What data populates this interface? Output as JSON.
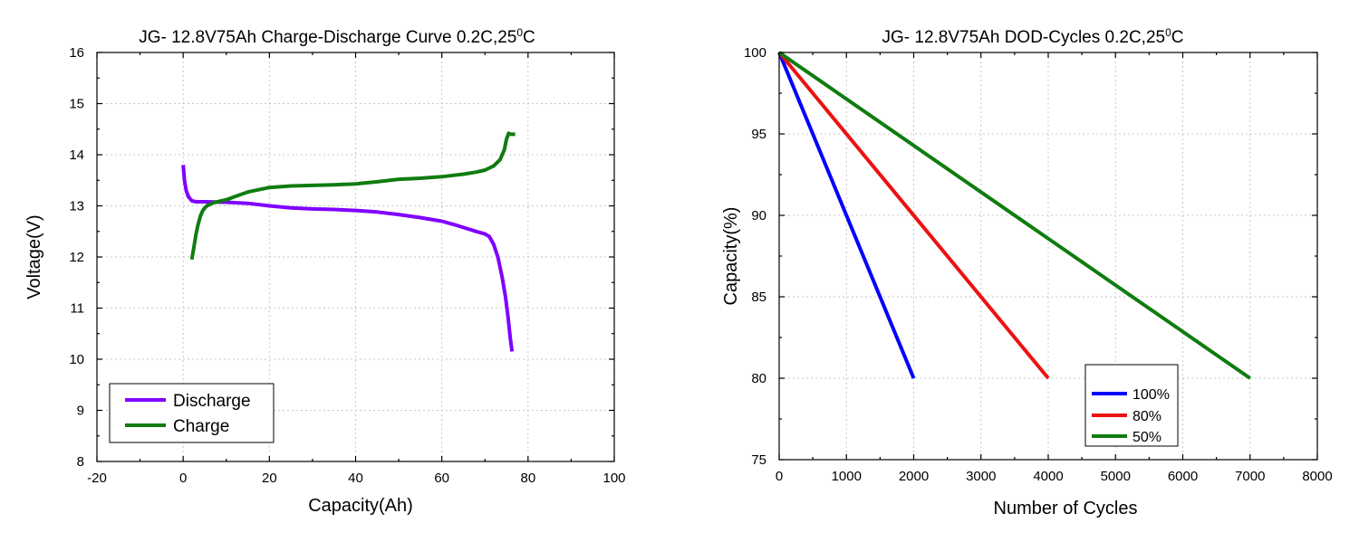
{
  "chart_data": [
    {
      "type": "line",
      "title": "JG- 12.8V75Ah Charge-Discharge Curve  0.2C,25",
      "title_sup": "0",
      "title_tail": "C",
      "xlabel": "Capacity(Ah)",
      "ylabel": "Voltage(V)",
      "xlim": [
        -20,
        100
      ],
      "ylim": [
        8,
        16
      ],
      "xticks": [
        -20,
        0,
        20,
        40,
        60,
        80,
        100
      ],
      "yticks": [
        8,
        9,
        10,
        11,
        12,
        13,
        14,
        15,
        16
      ],
      "grid": true,
      "legend_position": "bottom-left",
      "series": [
        {
          "name": "Discharge",
          "color": "#7f00ff",
          "x": [
            0,
            0.3,
            0.7,
            1.2,
            2,
            3,
            5,
            10,
            15,
            20,
            25,
            30,
            35,
            40,
            45,
            50,
            55,
            60,
            63,
            66,
            68,
            70,
            71,
            72,
            73,
            74,
            74.8,
            75.4,
            75.9,
            76.3
          ],
          "y": [
            13.8,
            13.5,
            13.3,
            13.18,
            13.1,
            13.08,
            13.08,
            13.07,
            13.05,
            13.0,
            12.96,
            12.94,
            12.93,
            12.91,
            12.88,
            12.83,
            12.77,
            12.7,
            12.63,
            12.55,
            12.5,
            12.45,
            12.4,
            12.25,
            12.0,
            11.6,
            11.2,
            10.8,
            10.4,
            10.15
          ]
        },
        {
          "name": "Charge",
          "color": "#107c10",
          "x": [
            2,
            2.5,
            3,
            3.5,
            4,
            4.5,
            5,
            5.5,
            6,
            7,
            8,
            10,
            12,
            15,
            20,
            25,
            30,
            35,
            40,
            45,
            50,
            55,
            60,
            65,
            68,
            70,
            72,
            73.5,
            74.5,
            75,
            75.5,
            76,
            77
          ],
          "y": [
            11.95,
            12.2,
            12.45,
            12.65,
            12.8,
            12.9,
            12.96,
            13.0,
            13.02,
            13.06,
            13.08,
            13.12,
            13.18,
            13.27,
            13.36,
            13.39,
            13.4,
            13.41,
            13.43,
            13.47,
            13.52,
            13.54,
            13.57,
            13.62,
            13.66,
            13.7,
            13.78,
            13.9,
            14.1,
            14.3,
            14.42,
            14.4,
            14.4
          ]
        }
      ]
    },
    {
      "type": "line",
      "title": "JG- 12.8V75Ah DOD-Cycles  0.2C,25",
      "title_sup": "0",
      "title_tail": "C",
      "xlabel": "Number of Cycles",
      "ylabel": "Capacity(%)",
      "xlim": [
        0,
        8000
      ],
      "ylim": [
        75,
        100
      ],
      "xticks": [
        0,
        1000,
        2000,
        3000,
        4000,
        5000,
        6000,
        7000,
        8000
      ],
      "yticks": [
        75,
        80,
        85,
        90,
        95,
        100
      ],
      "grid": true,
      "legend_position": "bottom-right",
      "series": [
        {
          "name": "100%",
          "color": "#0000ff",
          "x": [
            0,
            2000
          ],
          "y": [
            100,
            80
          ]
        },
        {
          "name": "80%",
          "color": "#ee1111",
          "x": [
            0,
            4000
          ],
          "y": [
            100,
            80
          ]
        },
        {
          "name": "50%",
          "color": "#107c10",
          "x": [
            0,
            7000
          ],
          "y": [
            100,
            80
          ]
        }
      ]
    }
  ]
}
